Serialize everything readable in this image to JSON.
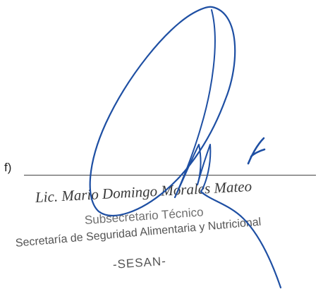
{
  "signature_block": {
    "prefix": "f)",
    "stamp": {
      "name": "Lic. Mario Domingo Morales Mateo",
      "title": "Subsecretario Técnico",
      "organization": "Secretaría de Seguridad Alimentaria y Nutricional",
      "abbreviation": "-SESAN-"
    },
    "ink_color": "#1e4fa3"
  }
}
